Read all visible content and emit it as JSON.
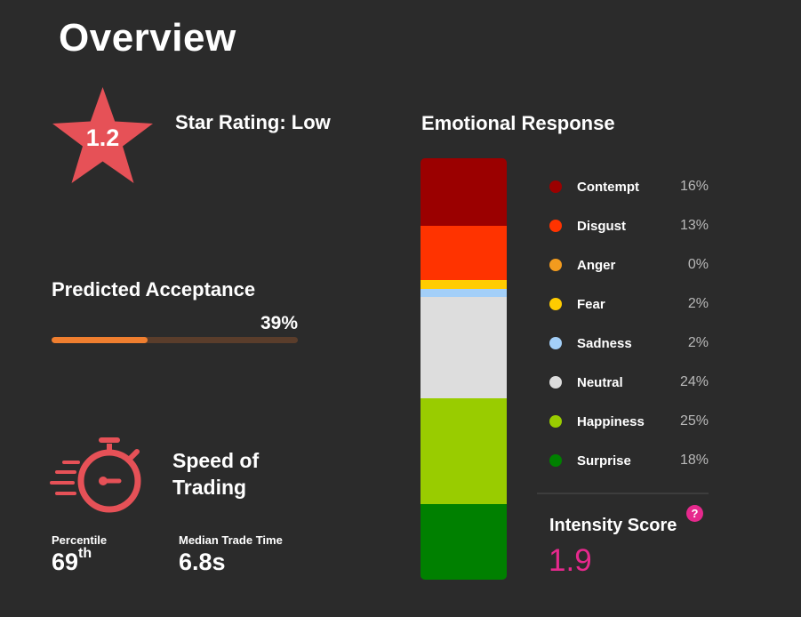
{
  "header": {
    "title": "Overview"
  },
  "star_rating": {
    "value": "1.2",
    "label": "Star Rating: Low",
    "star_color": "#e65157"
  },
  "predicted_acceptance": {
    "title": "Predicted Acceptance",
    "percent_label": "39%",
    "fill_fraction": 0.39,
    "fill_color": "#ef7e2f",
    "track_color": "#5a3d2b"
  },
  "speed_of_trading": {
    "title": "Speed of Trading",
    "icon": "stopwatch-icon",
    "percentile_label": "Percentile",
    "percentile_value": "69",
    "percentile_suffix": "th",
    "median_label": "Median Trade Time",
    "median_value": "6.8s"
  },
  "emotional_response": {
    "title": "Emotional Response",
    "emotions": [
      {
        "name": "Contempt",
        "percent": 16,
        "label": "16%",
        "color": "#9b0000"
      },
      {
        "name": "Disgust",
        "percent": 13,
        "label": "13%",
        "color": "#ff3300"
      },
      {
        "name": "Anger",
        "percent": 0,
        "label": "0%",
        "color": "#f39b1e"
      },
      {
        "name": "Fear",
        "percent": 2,
        "label": "2%",
        "color": "#ffcc00"
      },
      {
        "name": "Sadness",
        "percent": 2,
        "label": "2%",
        "color": "#a3cff8"
      },
      {
        "name": "Neutral",
        "percent": 24,
        "label": "24%",
        "color": "#dddddd"
      },
      {
        "name": "Happiness",
        "percent": 25,
        "label": "25%",
        "color": "#99cc00"
      },
      {
        "name": "Surprise",
        "percent": 18,
        "label": "18%",
        "color": "#008000"
      }
    ]
  },
  "intensity": {
    "title": "Intensity Score",
    "help_symbol": "?",
    "value": "1.9",
    "color": "#e6298d"
  }
}
